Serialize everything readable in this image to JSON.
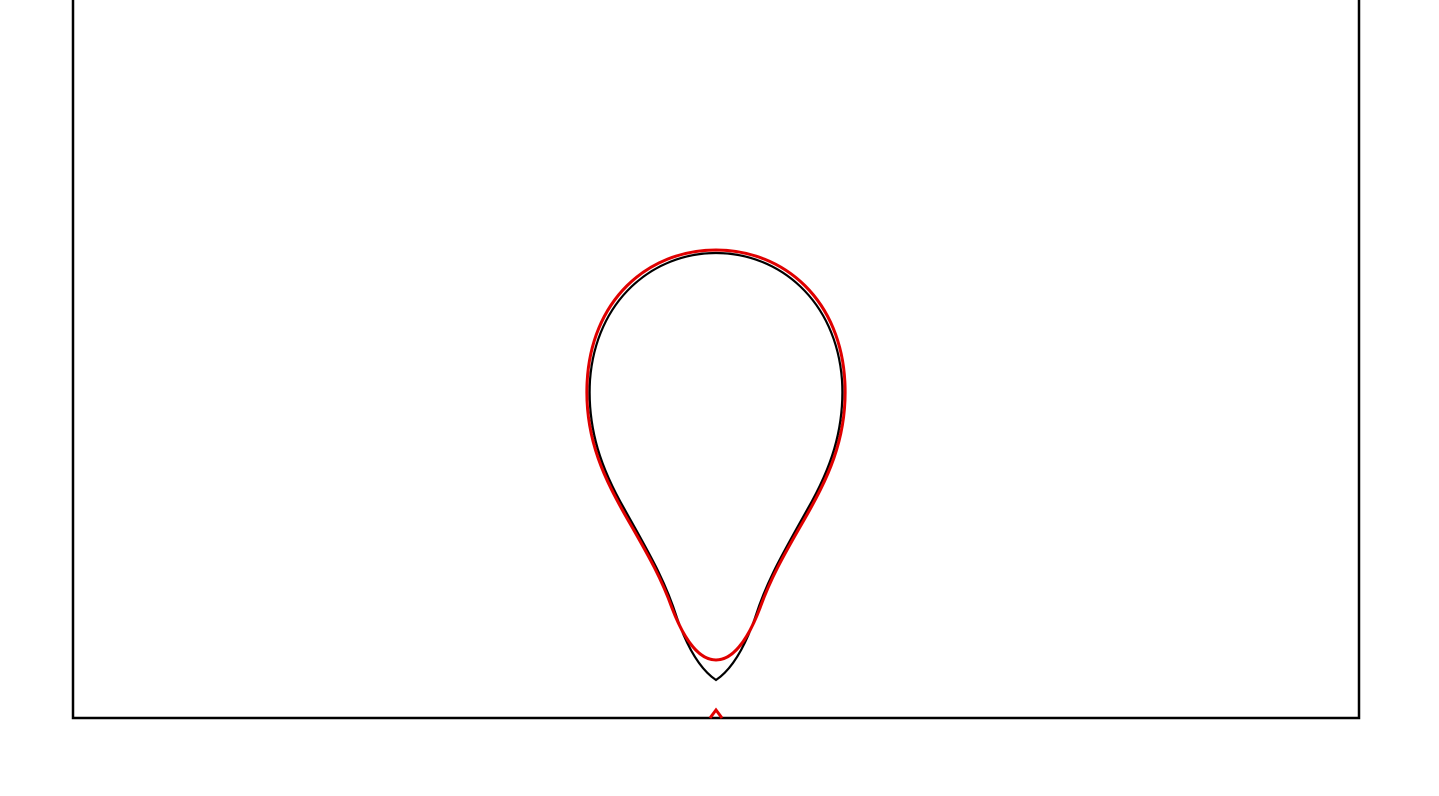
{
  "colors": {
    "background": "#ffffff",
    "frame": "#000000",
    "reference_curve": "#000000",
    "fitted_curve": "#e00000",
    "marker": "#e00000"
  },
  "shapes": {
    "reference_curve": "teardrop-outline",
    "fitted_curve": "teardrop-outline",
    "marker": "caret-up-marker"
  }
}
